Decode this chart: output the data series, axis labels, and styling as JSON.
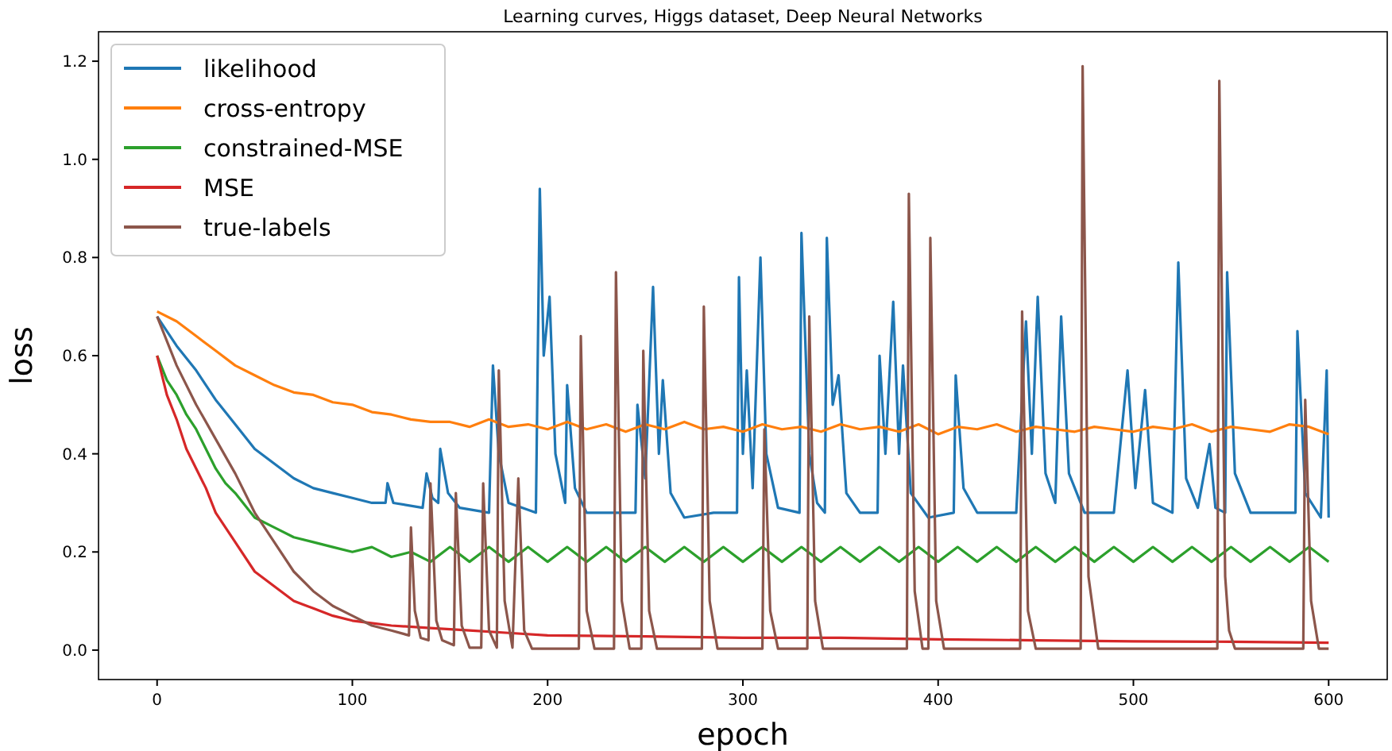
{
  "chart_data": {
    "type": "line",
    "title": "Learning curves, Higgs dataset, Deep Neural Networks",
    "xlabel": "epoch",
    "ylabel": "loss",
    "xlim": [
      -30,
      630
    ],
    "ylim": [
      -0.06,
      1.26
    ],
    "xticks": [
      0,
      100,
      200,
      300,
      400,
      500,
      600
    ],
    "yticks": [
      {
        "value": 0,
        "label": "0.0"
      },
      {
        "value": 0.2,
        "label": "0.2"
      },
      {
        "value": 0.4,
        "label": "0.4"
      },
      {
        "value": 0.6,
        "label": "0.6"
      },
      {
        "value": 0.8,
        "label": "0.8"
      },
      {
        "value": 1.0,
        "label": "1.0"
      },
      {
        "value": 1.2,
        "label": "1.2"
      }
    ],
    "grid": false,
    "legend": "top left",
    "marker": "none",
    "line_style": "solid",
    "series": [
      {
        "name": "likelihood",
        "color": "#1f77b4",
        "x": [
          0,
          10,
          20,
          30,
          40,
          50,
          60,
          70,
          80,
          90,
          100,
          110,
          117,
          118,
          121,
          136,
          138,
          141,
          144,
          145,
          149,
          155,
          170,
          172,
          175,
          180,
          194,
          196,
          198,
          201,
          204,
          209,
          210,
          214,
          220,
          235,
          245,
          246,
          250,
          254,
          257,
          259,
          263,
          270,
          285,
          297,
          298,
          300,
          302,
          305,
          309,
          312,
          318,
          329,
          330,
          334,
          338,
          342,
          343,
          346,
          349,
          353,
          360,
          369,
          370,
          373,
          377,
          380,
          382,
          386,
          395,
          408,
          409,
          413,
          420,
          440,
          445,
          448,
          451,
          455,
          460,
          463,
          467,
          475,
          490,
          497,
          501,
          506,
          510,
          520,
          523,
          527,
          533,
          539,
          542,
          547,
          548,
          552,
          560,
          575,
          583,
          584,
          588,
          596,
          599,
          600
        ],
        "values": [
          0.68,
          0.62,
          0.57,
          0.51,
          0.46,
          0.41,
          0.38,
          0.35,
          0.33,
          0.32,
          0.31,
          0.3,
          0.3,
          0.34,
          0.3,
          0.29,
          0.36,
          0.31,
          0.3,
          0.41,
          0.32,
          0.29,
          0.28,
          0.58,
          0.4,
          0.3,
          0.28,
          0.94,
          0.6,
          0.72,
          0.4,
          0.3,
          0.54,
          0.33,
          0.28,
          0.28,
          0.28,
          0.5,
          0.35,
          0.74,
          0.4,
          0.55,
          0.32,
          0.27,
          0.28,
          0.28,
          0.76,
          0.4,
          0.57,
          0.33,
          0.8,
          0.4,
          0.29,
          0.28,
          0.85,
          0.4,
          0.3,
          0.28,
          0.84,
          0.5,
          0.56,
          0.32,
          0.28,
          0.28,
          0.6,
          0.4,
          0.71,
          0.4,
          0.58,
          0.32,
          0.27,
          0.28,
          0.56,
          0.33,
          0.28,
          0.28,
          0.67,
          0.4,
          0.72,
          0.36,
          0.3,
          0.68,
          0.36,
          0.28,
          0.28,
          0.57,
          0.33,
          0.53,
          0.3,
          0.28,
          0.79,
          0.35,
          0.29,
          0.42,
          0.29,
          0.28,
          0.77,
          0.36,
          0.28,
          0.28,
          0.28,
          0.65,
          0.32,
          0.27,
          0.57,
          0.27
        ]
      },
      {
        "name": "cross-entropy",
        "color": "#ff7f0e",
        "x": [
          0,
          10,
          20,
          30,
          40,
          50,
          60,
          70,
          80,
          90,
          100,
          110,
          120,
          130,
          140,
          150,
          160,
          170,
          180,
          190,
          200,
          210,
          220,
          230,
          240,
          250,
          260,
          270,
          280,
          290,
          300,
          310,
          320,
          330,
          340,
          350,
          360,
          370,
          380,
          390,
          400,
          410,
          420,
          430,
          440,
          450,
          460,
          470,
          480,
          490,
          500,
          510,
          520,
          530,
          540,
          550,
          560,
          570,
          580,
          590,
          600
        ],
        "values": [
          0.69,
          0.67,
          0.64,
          0.61,
          0.58,
          0.56,
          0.54,
          0.525,
          0.52,
          0.505,
          0.5,
          0.485,
          0.48,
          0.47,
          0.465,
          0.465,
          0.455,
          0.47,
          0.455,
          0.46,
          0.45,
          0.465,
          0.45,
          0.46,
          0.445,
          0.46,
          0.45,
          0.465,
          0.45,
          0.455,
          0.445,
          0.46,
          0.45,
          0.455,
          0.445,
          0.46,
          0.45,
          0.455,
          0.445,
          0.46,
          0.44,
          0.455,
          0.45,
          0.46,
          0.445,
          0.455,
          0.45,
          0.445,
          0.455,
          0.45,
          0.445,
          0.455,
          0.45,
          0.46,
          0.445,
          0.455,
          0.45,
          0.445,
          0.46,
          0.455,
          0.44
        ]
      },
      {
        "name": "constrained-MSE",
        "color": "#2ca02c",
        "x": [
          0,
          5,
          10,
          15,
          20,
          25,
          30,
          35,
          40,
          50,
          60,
          70,
          80,
          90,
          100,
          110,
          120,
          130,
          140,
          150,
          160,
          170,
          180,
          190,
          200,
          210,
          220,
          230,
          240,
          250,
          260,
          270,
          280,
          290,
          300,
          310,
          320,
          330,
          340,
          350,
          360,
          370,
          380,
          390,
          400,
          410,
          420,
          430,
          440,
          450,
          460,
          470,
          480,
          490,
          500,
          510,
          520,
          530,
          540,
          550,
          560,
          570,
          580,
          590,
          600
        ],
        "values": [
          0.6,
          0.55,
          0.52,
          0.48,
          0.45,
          0.41,
          0.37,
          0.34,
          0.32,
          0.27,
          0.25,
          0.23,
          0.22,
          0.21,
          0.2,
          0.21,
          0.19,
          0.2,
          0.18,
          0.21,
          0.18,
          0.21,
          0.18,
          0.21,
          0.18,
          0.21,
          0.18,
          0.21,
          0.18,
          0.21,
          0.18,
          0.21,
          0.18,
          0.21,
          0.18,
          0.21,
          0.18,
          0.21,
          0.18,
          0.21,
          0.18,
          0.21,
          0.18,
          0.21,
          0.18,
          0.21,
          0.18,
          0.21,
          0.18,
          0.21,
          0.18,
          0.21,
          0.18,
          0.21,
          0.18,
          0.21,
          0.18,
          0.21,
          0.18,
          0.21,
          0.18,
          0.21,
          0.18,
          0.21,
          0.18
        ]
      },
      {
        "name": "MSE",
        "color": "#d62728",
        "x": [
          0,
          5,
          10,
          15,
          20,
          25,
          30,
          40,
          50,
          60,
          70,
          80,
          90,
          100,
          120,
          140,
          160,
          180,
          200,
          250,
          300,
          350,
          400,
          450,
          500,
          550,
          600
        ],
        "values": [
          0.6,
          0.52,
          0.47,
          0.41,
          0.37,
          0.33,
          0.28,
          0.22,
          0.16,
          0.13,
          0.1,
          0.085,
          0.07,
          0.06,
          0.05,
          0.045,
          0.04,
          0.035,
          0.03,
          0.028,
          0.025,
          0.025,
          0.022,
          0.02,
          0.018,
          0.017,
          0.015
        ]
      },
      {
        "name": "true-labels",
        "color": "#8c564b",
        "x": [
          0,
          10,
          20,
          30,
          40,
          50,
          60,
          70,
          80,
          90,
          100,
          110,
          120,
          129,
          130,
          132,
          135,
          139,
          140,
          143,
          146,
          152,
          153,
          156,
          160,
          166,
          167,
          170,
          174,
          175,
          178,
          182,
          185,
          188,
          192,
          216,
          217,
          220,
          224,
          234,
          235,
          238,
          242,
          248,
          249,
          252,
          256,
          279,
          280,
          283,
          287,
          310,
          311,
          314,
          318,
          333,
          334,
          337,
          341,
          384,
          385,
          388,
          392,
          395,
          396,
          399,
          403,
          442,
          443,
          446,
          450,
          473,
          474,
          477,
          482,
          543,
          544,
          547,
          549,
          552,
          587,
          588,
          591,
          595,
          600
        ],
        "values": [
          0.68,
          0.58,
          0.5,
          0.43,
          0.36,
          0.28,
          0.22,
          0.16,
          0.12,
          0.09,
          0.07,
          0.05,
          0.04,
          0.03,
          0.25,
          0.08,
          0.025,
          0.02,
          0.34,
          0.06,
          0.02,
          0.01,
          0.32,
          0.05,
          0.005,
          0.005,
          0.34,
          0.04,
          0.005,
          0.57,
          0.1,
          0.005,
          0.35,
          0.04,
          0.003,
          0.003,
          0.64,
          0.08,
          0.003,
          0.003,
          0.77,
          0.1,
          0.003,
          0.003,
          0.61,
          0.08,
          0.003,
          0.003,
          0.7,
          0.1,
          0.003,
          0.003,
          0.45,
          0.08,
          0.003,
          0.003,
          0.68,
          0.1,
          0.003,
          0.003,
          0.93,
          0.12,
          0.003,
          0.003,
          0.84,
          0.1,
          0.003,
          0.003,
          0.69,
          0.08,
          0.003,
          0.003,
          1.19,
          0.15,
          0.003,
          0.003,
          1.16,
          0.15,
          0.04,
          0.003,
          0.003,
          0.51,
          0.1,
          0.003,
          0.003
        ]
      }
    ]
  }
}
